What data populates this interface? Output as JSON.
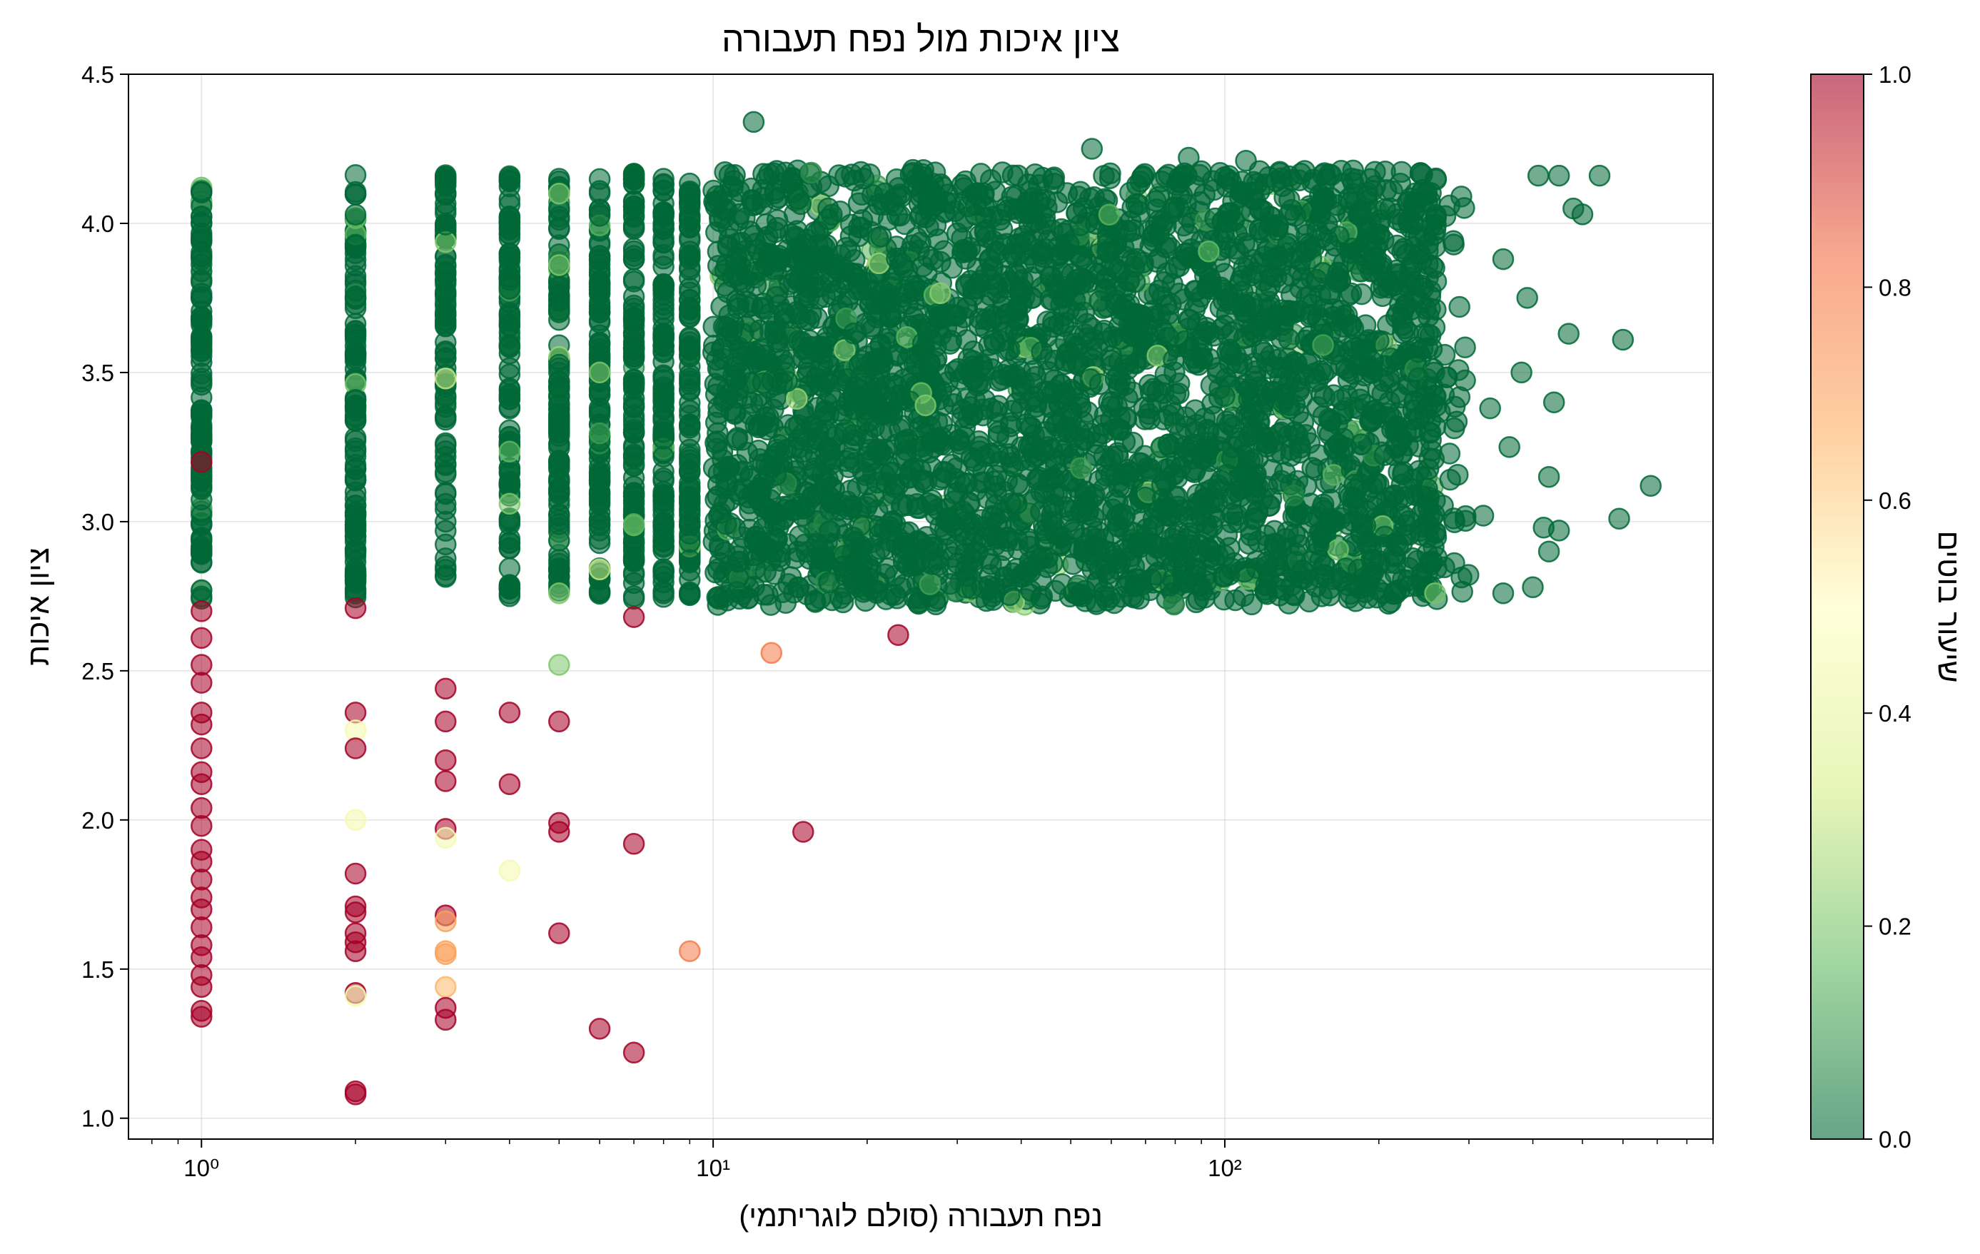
{
  "chart_data": {
    "type": "scatter",
    "title": "ציון איכות מול נפח תעבורה",
    "xlabel": "נפח תעבורה (סולם לוגריתמי)",
    "ylabel": "ציון איכות",
    "colorbar_label": "שיעור בוטים",
    "x_scale": "log",
    "xlim": [
      0.72,
      900
    ],
    "ylim": [
      0.93,
      4.5
    ],
    "x_ticks": [
      {
        "value": 1,
        "label": "10⁰"
      },
      {
        "value": 10,
        "label": "10¹"
      },
      {
        "value": 100,
        "label": "10²"
      }
    ],
    "y_ticks": [
      "1.0",
      "1.5",
      "2.0",
      "2.5",
      "3.0",
      "3.5",
      "4.0",
      "4.5"
    ],
    "colorbar_ticks": [
      "0.0",
      "0.2",
      "0.4",
      "0.6",
      "0.8",
      "1.0"
    ],
    "colorbar_range": [
      0,
      1
    ],
    "colormap": "RdYlGn_r",
    "colormap_stops": [
      "#006837",
      "#66bd63",
      "#d9ef8b",
      "#ffffbf",
      "#fdae61",
      "#f46d43",
      "#a50026"
    ],
    "marker_alpha": 0.55,
    "grid": true,
    "points_low_quality": [
      {
        "x": 1,
        "y": 2.7,
        "c": 1.0
      },
      {
        "x": 1,
        "y": 2.61,
        "c": 1.0
      },
      {
        "x": 1,
        "y": 2.52,
        "c": 1.0
      },
      {
        "x": 1,
        "y": 2.46,
        "c": 1.0
      },
      {
        "x": 1,
        "y": 2.36,
        "c": 1.0
      },
      {
        "x": 1,
        "y": 2.32,
        "c": 1.0
      },
      {
        "x": 1,
        "y": 2.24,
        "c": 1.0
      },
      {
        "x": 1,
        "y": 2.16,
        "c": 1.0
      },
      {
        "x": 1,
        "y": 2.12,
        "c": 1.0
      },
      {
        "x": 1,
        "y": 2.04,
        "c": 1.0
      },
      {
        "x": 1,
        "y": 1.98,
        "c": 1.0
      },
      {
        "x": 1,
        "y": 1.9,
        "c": 1.0
      },
      {
        "x": 1,
        "y": 1.86,
        "c": 1.0
      },
      {
        "x": 1,
        "y": 1.8,
        "c": 1.0
      },
      {
        "x": 1,
        "y": 1.74,
        "c": 1.0
      },
      {
        "x": 1,
        "y": 1.7,
        "c": 1.0
      },
      {
        "x": 1,
        "y": 1.64,
        "c": 1.0
      },
      {
        "x": 1,
        "y": 1.58,
        "c": 1.0
      },
      {
        "x": 1,
        "y": 1.54,
        "c": 1.0
      },
      {
        "x": 1,
        "y": 1.48,
        "c": 1.0
      },
      {
        "x": 1,
        "y": 1.44,
        "c": 1.0
      },
      {
        "x": 1,
        "y": 1.36,
        "c": 1.0
      },
      {
        "x": 1,
        "y": 1.34,
        "c": 1.0
      },
      {
        "x": 1,
        "y": 3.2,
        "c": 1.0
      },
      {
        "x": 2,
        "y": 2.71,
        "c": 1.0
      },
      {
        "x": 2,
        "y": 2.36,
        "c": 1.0
      },
      {
        "x": 2,
        "y": 2.3,
        "c": 0.45
      },
      {
        "x": 2,
        "y": 2.24,
        "c": 1.0
      },
      {
        "x": 2,
        "y": 2.0,
        "c": 0.45
      },
      {
        "x": 2,
        "y": 1.82,
        "c": 1.0
      },
      {
        "x": 2,
        "y": 1.71,
        "c": 1.0
      },
      {
        "x": 2,
        "y": 1.69,
        "c": 1.0
      },
      {
        "x": 2,
        "y": 1.62,
        "c": 1.0
      },
      {
        "x": 2,
        "y": 1.59,
        "c": 1.0
      },
      {
        "x": 2,
        "y": 1.56,
        "c": 1.0
      },
      {
        "x": 2,
        "y": 1.42,
        "c": 1.0
      },
      {
        "x": 2,
        "y": 1.41,
        "c": 0.45
      },
      {
        "x": 2,
        "y": 1.09,
        "c": 1.0
      },
      {
        "x": 2,
        "y": 1.08,
        "c": 1.0
      },
      {
        "x": 3,
        "y": 2.44,
        "c": 1.0
      },
      {
        "x": 3,
        "y": 2.33,
        "c": 1.0
      },
      {
        "x": 3,
        "y": 2.2,
        "c": 1.0
      },
      {
        "x": 3,
        "y": 2.13,
        "c": 1.0
      },
      {
        "x": 3,
        "y": 1.97,
        "c": 1.0
      },
      {
        "x": 3,
        "y": 1.94,
        "c": 0.45
      },
      {
        "x": 3,
        "y": 1.68,
        "c": 1.0
      },
      {
        "x": 3,
        "y": 1.66,
        "c": 0.7
      },
      {
        "x": 3,
        "y": 1.56,
        "c": 0.7
      },
      {
        "x": 3,
        "y": 1.55,
        "c": 0.7
      },
      {
        "x": 3,
        "y": 1.44,
        "c": 0.65
      },
      {
        "x": 3,
        "y": 1.37,
        "c": 1.0
      },
      {
        "x": 3,
        "y": 1.33,
        "c": 1.0
      },
      {
        "x": 4,
        "y": 2.36,
        "c": 1.0
      },
      {
        "x": 4,
        "y": 2.12,
        "c": 1.0
      },
      {
        "x": 4,
        "y": 1.83,
        "c": 0.45
      },
      {
        "x": 5,
        "y": 2.52,
        "c": 0.2
      },
      {
        "x": 5,
        "y": 2.33,
        "c": 1.0
      },
      {
        "x": 5,
        "y": 1.99,
        "c": 1.0
      },
      {
        "x": 5,
        "y": 1.96,
        "c": 1.0
      },
      {
        "x": 5,
        "y": 1.62,
        "c": 1.0
      },
      {
        "x": 6,
        "y": 1.3,
        "c": 1.0
      },
      {
        "x": 7,
        "y": 2.68,
        "c": 1.0
      },
      {
        "x": 7,
        "y": 1.92,
        "c": 1.0
      },
      {
        "x": 7,
        "y": 1.22,
        "c": 1.0
      },
      {
        "x": 9,
        "y": 1.56,
        "c": 0.8
      },
      {
        "x": 13,
        "y": 2.56,
        "c": 0.8
      },
      {
        "x": 15,
        "y": 1.96,
        "c": 1.0
      },
      {
        "x": 23,
        "y": 2.62,
        "c": 1.0
      }
    ],
    "points_high_quality_outliers": [
      {
        "x": 12,
        "y": 4.34,
        "c": 0.0
      },
      {
        "x": 55,
        "y": 4.25,
        "c": 0.0
      },
      {
        "x": 85,
        "y": 4.22,
        "c": 0.0
      },
      {
        "x": 110,
        "y": 4.21,
        "c": 0.0
      },
      {
        "x": 5,
        "y": 4.1,
        "c": 0.2
      },
      {
        "x": 5,
        "y": 3.86,
        "c": 0.2
      },
      {
        "x": 6,
        "y": 3.5,
        "c": 0.2
      },
      {
        "x": 3,
        "y": 3.48,
        "c": 0.3
      },
      {
        "x": 4,
        "y": 3.06,
        "c": 0.2
      },
      {
        "x": 6,
        "y": 2.84,
        "c": 0.3
      },
      {
        "x": 5,
        "y": 2.76,
        "c": 0.2
      },
      {
        "x": 26,
        "y": 3.39,
        "c": 0.2
      },
      {
        "x": 290,
        "y": 4.09,
        "c": 0.0
      },
      {
        "x": 410,
        "y": 4.16,
        "c": 0.0
      },
      {
        "x": 450,
        "y": 4.16,
        "c": 0.0
      },
      {
        "x": 540,
        "y": 4.16,
        "c": 0.0
      },
      {
        "x": 480,
        "y": 4.05,
        "c": 0.0
      },
      {
        "x": 500,
        "y": 4.03,
        "c": 0.0
      },
      {
        "x": 600,
        "y": 3.61,
        "c": 0.0
      },
      {
        "x": 680,
        "y": 3.12,
        "c": 0.0
      },
      {
        "x": 590,
        "y": 3.01,
        "c": 0.0
      },
      {
        "x": 470,
        "y": 3.63,
        "c": 0.0
      },
      {
        "x": 440,
        "y": 3.4,
        "c": 0.0
      },
      {
        "x": 430,
        "y": 3.15,
        "c": 0.0
      },
      {
        "x": 420,
        "y": 2.98,
        "c": 0.0
      },
      {
        "x": 450,
        "y": 2.97,
        "c": 0.0
      },
      {
        "x": 430,
        "y": 2.9,
        "c": 0.0
      },
      {
        "x": 400,
        "y": 2.78,
        "c": 0.0
      },
      {
        "x": 350,
        "y": 2.76,
        "c": 0.0
      },
      {
        "x": 390,
        "y": 3.75,
        "c": 0.0
      },
      {
        "x": 350,
        "y": 3.88,
        "c": 0.0
      },
      {
        "x": 380,
        "y": 3.5,
        "c": 0.0
      },
      {
        "x": 330,
        "y": 3.38,
        "c": 0.0
      },
      {
        "x": 360,
        "y": 3.25,
        "c": 0.0
      },
      {
        "x": 320,
        "y": 3.02,
        "c": 0.0
      }
    ],
    "dense_clusters": [
      {
        "x_min": 1,
        "x_max": 1,
        "y_min": 2.74,
        "y_max": 4.12,
        "count": 110,
        "c": 0.0
      },
      {
        "x_min": 2,
        "x_max": 2,
        "y_min": 2.74,
        "y_max": 4.17,
        "count": 110,
        "c": 0.0
      },
      {
        "x_min": 3,
        "x_max": 3,
        "y_min": 2.8,
        "y_max": 4.17,
        "count": 90,
        "c": 0.0
      },
      {
        "x_min": 4,
        "x_max": 4,
        "y_min": 2.75,
        "y_max": 4.16,
        "count": 110,
        "c": 0.0
      },
      {
        "x_min": 5,
        "x_max": 5,
        "y_min": 2.75,
        "y_max": 4.16,
        "count": 110,
        "c": 0.0
      },
      {
        "x_min": 6,
        "x_max": 6,
        "y_min": 2.75,
        "y_max": 4.15,
        "count": 110,
        "c": 0.0
      },
      {
        "x_min": 7,
        "x_max": 7,
        "y_min": 2.74,
        "y_max": 4.17,
        "count": 110,
        "c": 0.0
      },
      {
        "x_min": 8,
        "x_max": 8,
        "y_min": 2.74,
        "y_max": 4.15,
        "count": 110,
        "c": 0.0
      },
      {
        "x_min": 9,
        "x_max": 9,
        "y_min": 2.74,
        "y_max": 4.15,
        "count": 110,
        "c": 0.0
      },
      {
        "x_min": 10,
        "x_max": 260,
        "y_min": 2.72,
        "y_max": 4.18,
        "count": 3600,
        "c": 0.0
      },
      {
        "x_min": 230,
        "x_max": 300,
        "y_min": 2.74,
        "y_max": 4.12,
        "count": 60,
        "c": 0.0
      }
    ]
  }
}
